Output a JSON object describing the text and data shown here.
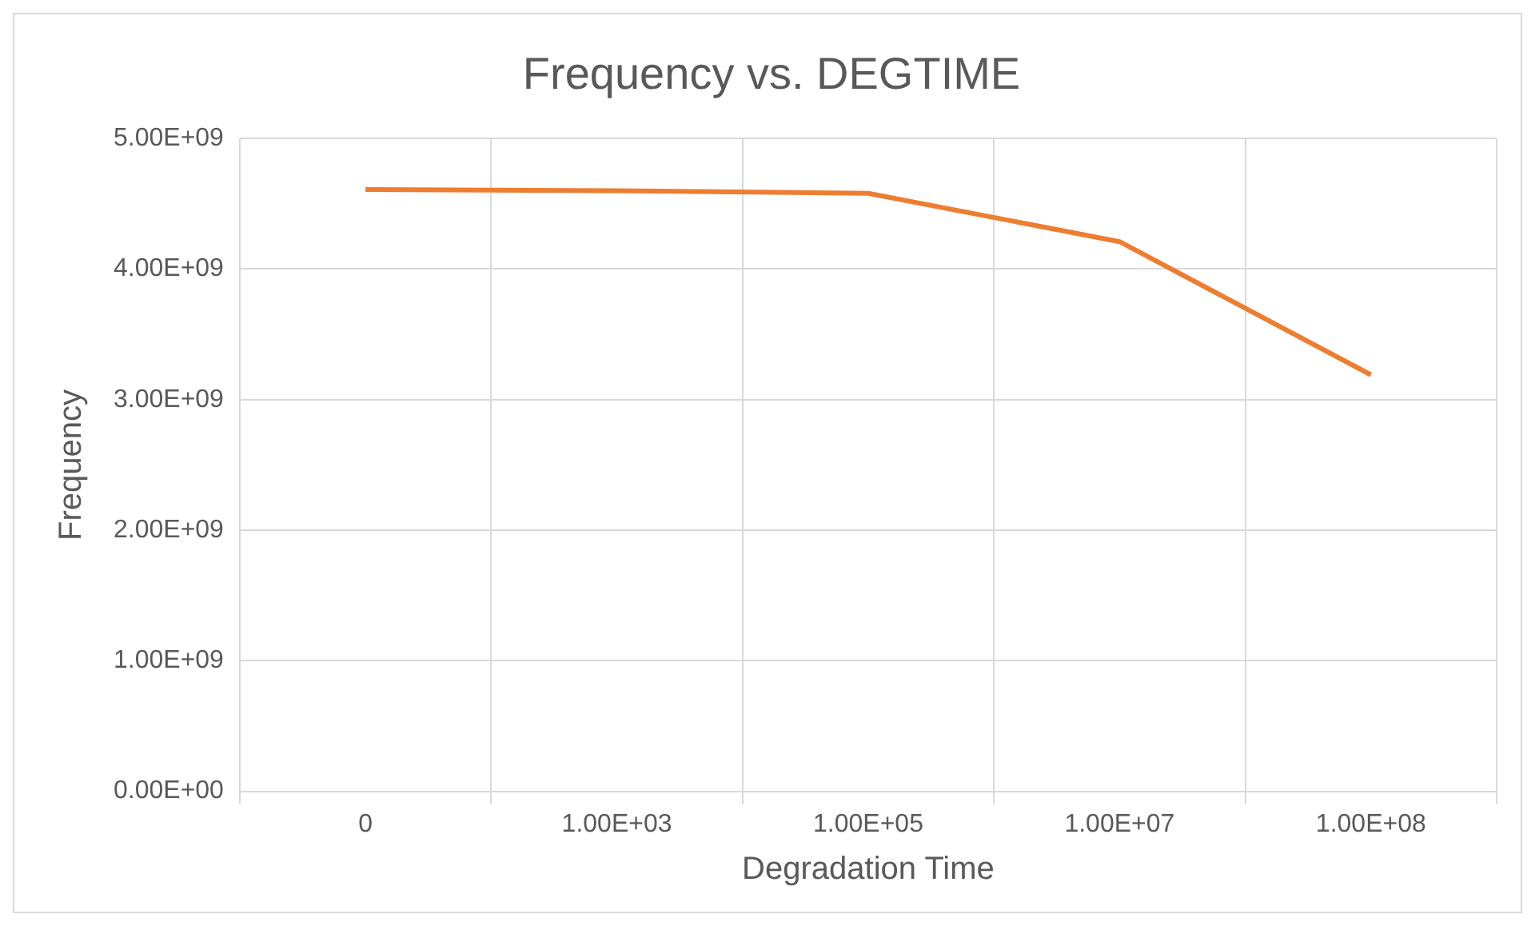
{
  "chart_data": {
    "type": "line",
    "title": "Frequency vs. DEGTIME",
    "xlabel": "Degradation Time",
    "ylabel": "Frequency",
    "categories": [
      "0",
      "1.00E+03",
      "1.00E+05",
      "1.00E+07",
      "1.00E+08"
    ],
    "series": [
      {
        "color": "#ed7d31",
        "values": [
          4610000000.0,
          4600000000.0,
          4580000000.0,
          4210000000.0,
          3190000000.0
        ]
      }
    ],
    "ylim": [
      0,
      5000000000.0
    ],
    "yticks": [
      {
        "value": 0,
        "label": "0.00E+00"
      },
      {
        "value": 1000000000.0,
        "label": "1.00E+09"
      },
      {
        "value": 2000000000.0,
        "label": "2.00E+09"
      },
      {
        "value": 3000000000.0,
        "label": "3.00E+09"
      },
      {
        "value": 4000000000.0,
        "label": "4.00E+09"
      },
      {
        "value": 5000000000.0,
        "label": "5.00E+09"
      }
    ],
    "grid": true,
    "legend": false,
    "marker": "none",
    "line_style": "solid"
  }
}
